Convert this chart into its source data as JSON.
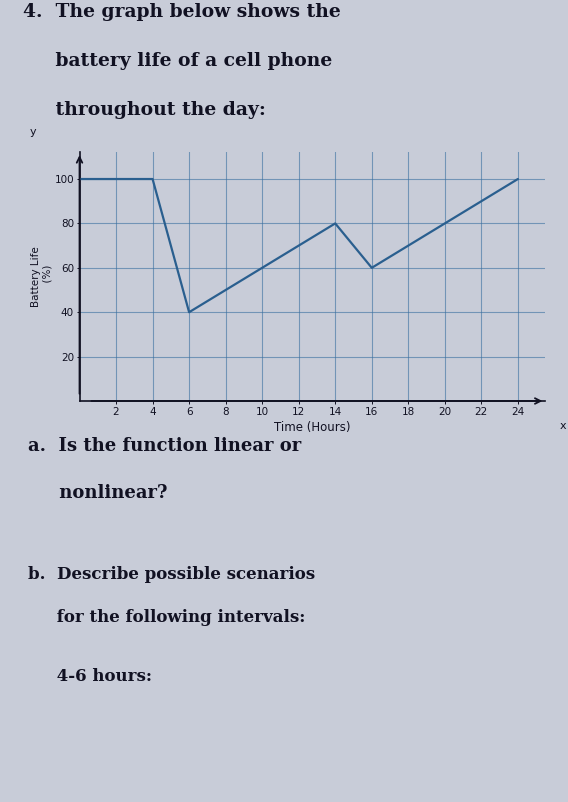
{
  "title_line1": "4.  The graph below shows the",
  "title_line2": "     battery life of a cell phone",
  "title_line3": "     throughout the day:",
  "xlabel": "Time (Hours)",
  "ylabel": "Battery Life\n  (%)",
  "x_ticks": [
    2,
    4,
    6,
    8,
    10,
    12,
    14,
    16,
    18,
    20,
    22,
    24
  ],
  "y_ticks": [
    20,
    40,
    60,
    80,
    100
  ],
  "xlim": [
    0,
    25.5
  ],
  "ylim": [
    0,
    112
  ],
  "line_x": [
    0,
    4,
    6,
    14,
    16,
    24
  ],
  "line_y": [
    100,
    100,
    40,
    80,
    60,
    100
  ],
  "line_color": "#2a5f8f",
  "line_width": 1.6,
  "grid_color": "#3a6fa0",
  "grid_alpha": 0.6,
  "background_color": "#c8ccd8",
  "question_a_1": "a.  Is the function linear or",
  "question_a_2": "     nonlinear?",
  "question_b_1": "b.  Describe possible scenarios",
  "question_b_2": "     for the following intervals:",
  "question_c": "     4-6 hours:",
  "text_color": "#111122",
  "font_size_title": 13.5,
  "font_size_questions_a": 13,
  "font_size_questions_b": 12,
  "tick_fontsize": 7.5
}
